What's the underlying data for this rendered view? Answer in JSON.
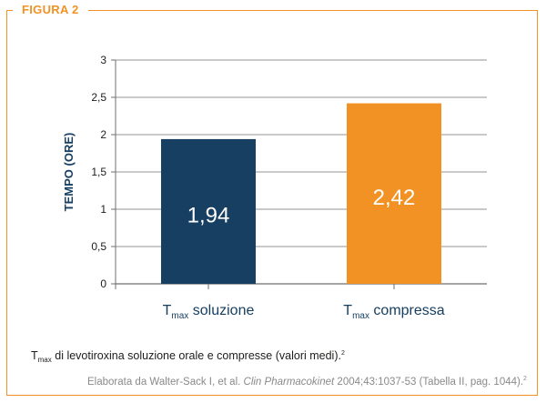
{
  "figure_label": "FIGURA 2",
  "caption": {
    "t": "T",
    "sub": "max",
    "text": " di levotiroxina soluzione orale e compresse (valori medi).",
    "sup": "2"
  },
  "source": {
    "prefix": "Elaborata da Walter-Sack I, et al. ",
    "journal": "Clin Pharmacokinet",
    "suffix": " 2004;43:1037-53 (Tabella II, pag. 1044).",
    "sup": "2"
  },
  "chart_data": {
    "type": "bar",
    "ylabel": "TEMPO (ORE)",
    "ylim": [
      0,
      3
    ],
    "yticks": [
      {
        "value": 0,
        "label": "0"
      },
      {
        "value": 0.5,
        "label": "0,5"
      },
      {
        "value": 1,
        "label": "1"
      },
      {
        "value": 1.5,
        "label": "1,5"
      },
      {
        "value": 2,
        "label": "2"
      },
      {
        "value": 2.5,
        "label": "2,5"
      },
      {
        "value": 3,
        "label": "3"
      }
    ],
    "grid": true,
    "bars": [
      {
        "category_main": "T",
        "category_sub": "max",
        "category_rest": " soluzione",
        "value": 1.94,
        "label": "1,94",
        "color": "#163f61"
      },
      {
        "category_main": "T",
        "category_sub": "max",
        "category_rest": " compressa",
        "value": 2.42,
        "label": "2,42",
        "color": "#f39224"
      }
    ]
  }
}
